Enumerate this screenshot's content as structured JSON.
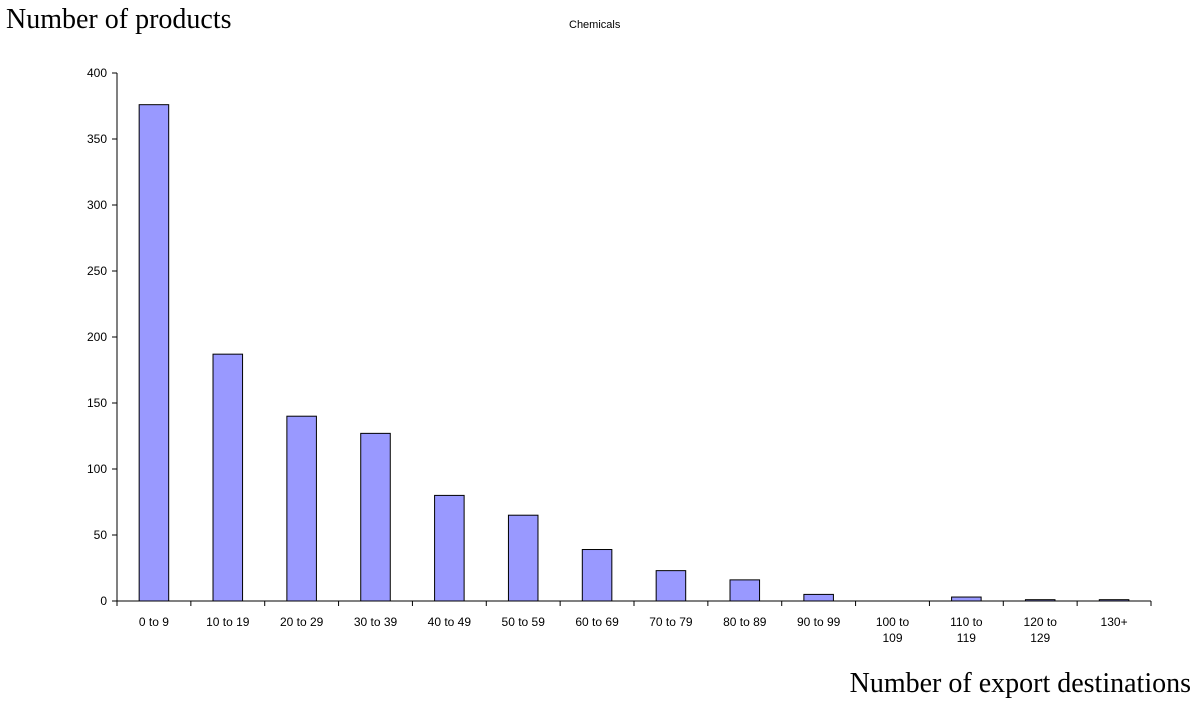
{
  "chart_data": {
    "type": "bar",
    "title": "Chemicals",
    "ylabel": "Number of products",
    "xlabel": "Number of export destinations",
    "categories": [
      [
        "0 to 9"
      ],
      [
        "10 to 19"
      ],
      [
        "20 to 29"
      ],
      [
        "30 to 39"
      ],
      [
        "40 to 49"
      ],
      [
        "50 to 59"
      ],
      [
        "60 to 69"
      ],
      [
        "70 to 79"
      ],
      [
        "80 to 89"
      ],
      [
        "90 to 99"
      ],
      [
        "100 to",
        "109"
      ],
      [
        "110 to",
        "119"
      ],
      [
        "120 to",
        "129"
      ],
      [
        "130+"
      ]
    ],
    "values": [
      376,
      187,
      140,
      127,
      80,
      65,
      39,
      23,
      16,
      5,
      0,
      3,
      1,
      1
    ],
    "ylim": [
      0,
      400
    ],
    "yticks": [
      0,
      50,
      100,
      150,
      200,
      250,
      300,
      350,
      400
    ],
    "grid": false,
    "legend": "none",
    "bar_color": "#9999ff",
    "bar_stroke": "#000000"
  }
}
